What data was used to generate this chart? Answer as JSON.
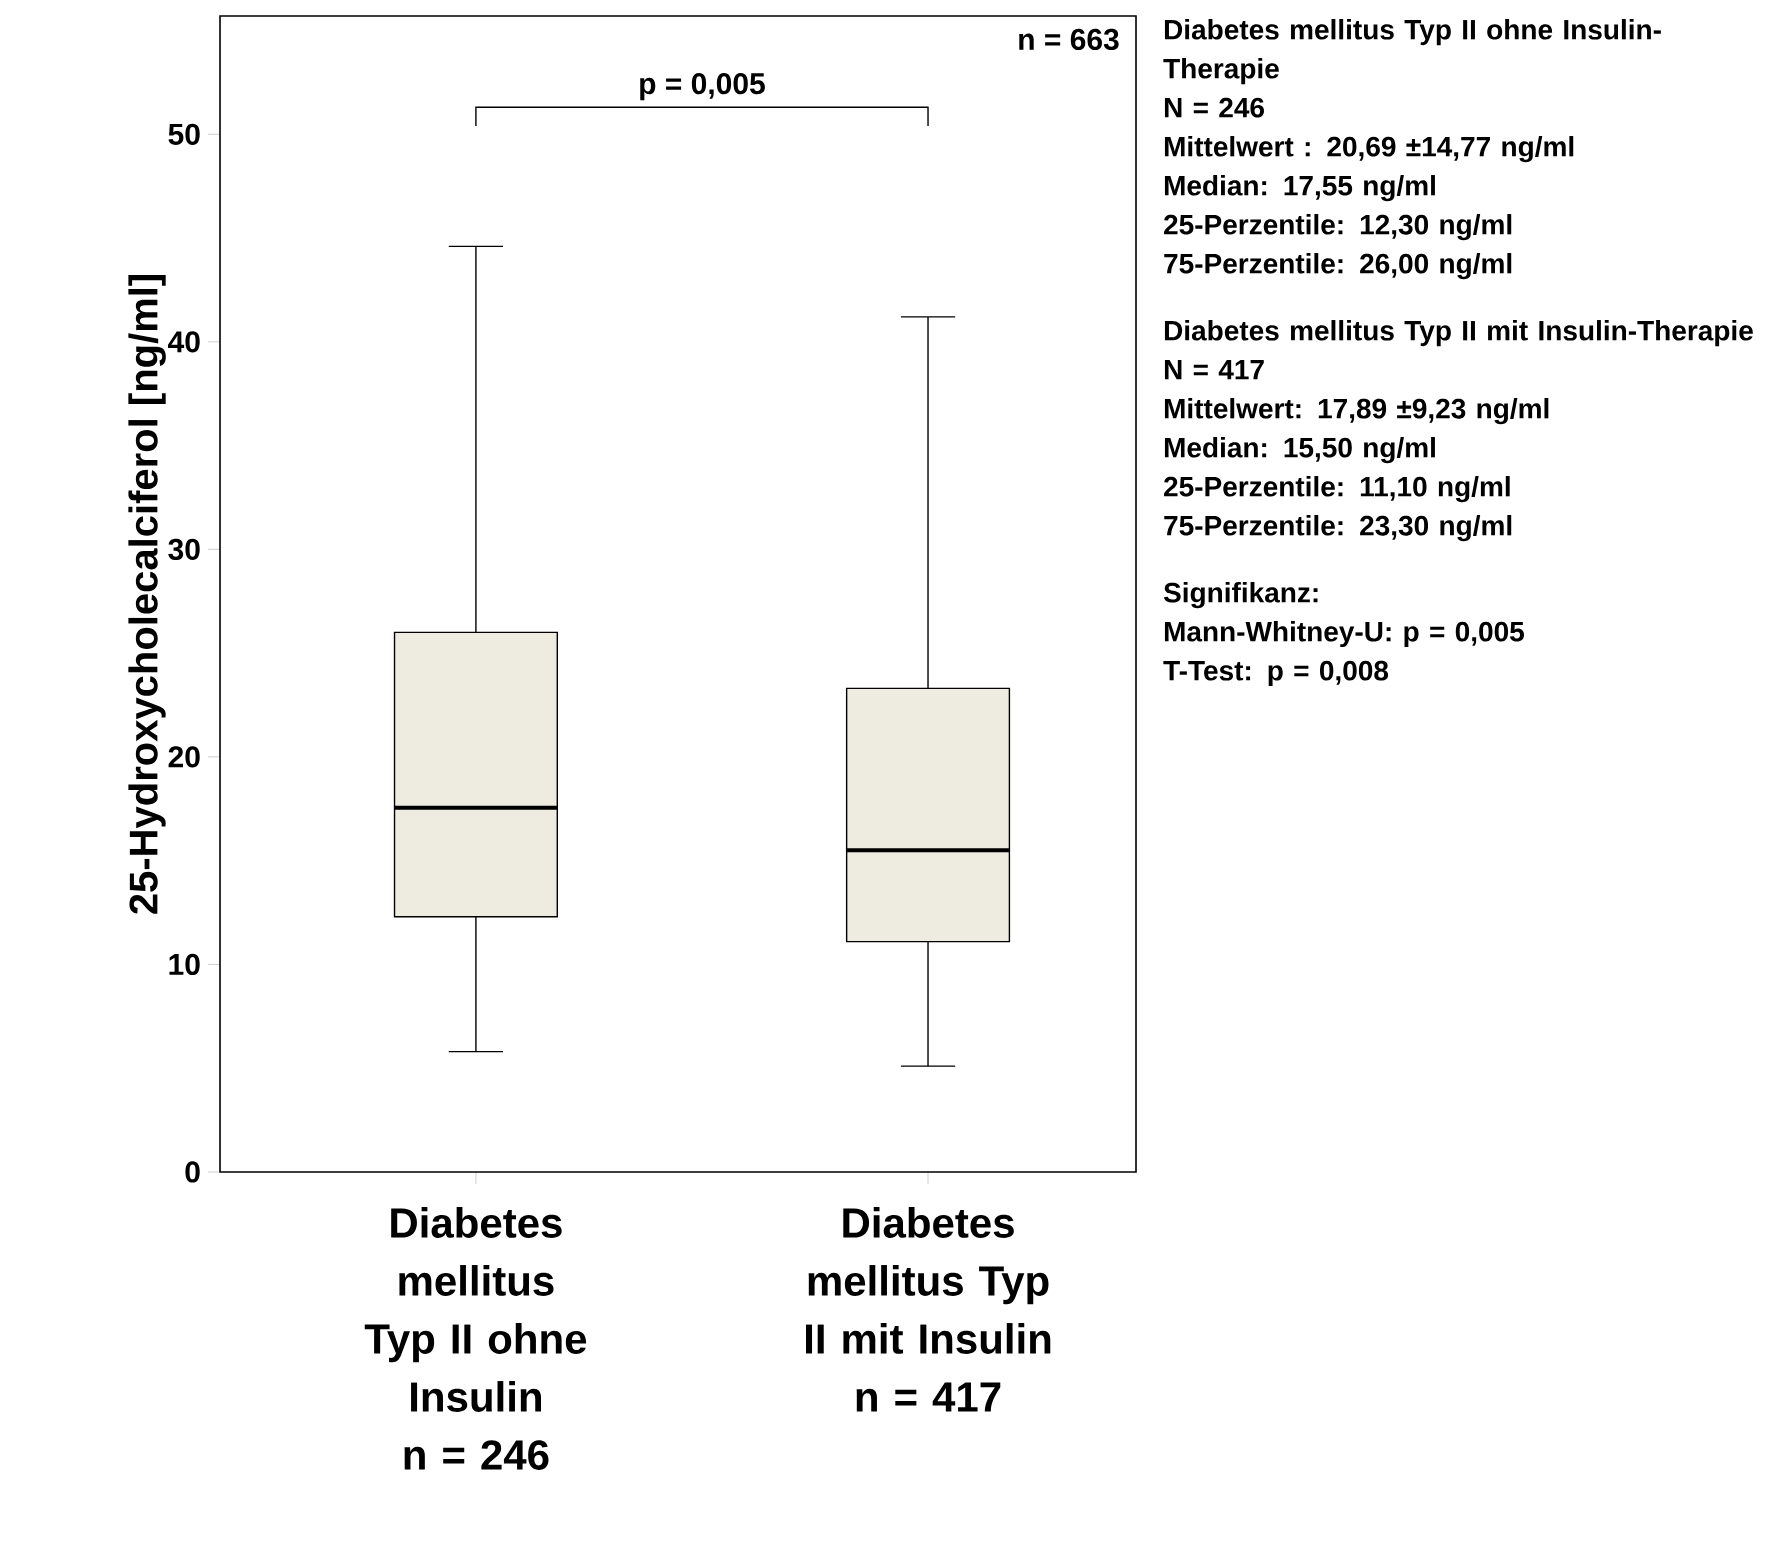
{
  "chart_data": {
    "type": "box",
    "ylabel": "25-Hydroxycholecalciferol [ng/ml]",
    "categories": [
      "Diabetes mellitus Typ II ohne Insulin n = 246",
      "Diabetes mellitus Typ II mit Insulin n = 417"
    ],
    "boxes": [
      {
        "low": 5.8,
        "q1": 12.3,
        "median": 17.55,
        "q3": 26.0,
        "high": 44.6
      },
      {
        "low": 5.1,
        "q1": 11.1,
        "median": 15.5,
        "q3": 23.3,
        "high": 41.2
      }
    ],
    "color": "#eeebe0",
    "ylim": [
      0,
      55.7
    ],
    "yticks": [
      0,
      10,
      20,
      30,
      40,
      50
    ],
    "grid": false,
    "annotations": [
      "p = 0,005",
      "n = 663",
      "Diabetes mellitus Typ II ohne Insulin-Therapie",
      "N = 246",
      "Mittelwert : 20,69  ±14,77 ng/ml",
      "Median: 17,55 ng/ml",
      "25-Perzentile: 12,30 ng/ml",
      "75-Perzentile: 26,00 ng/ml",
      "Diabetes mellitus Typ II mit Insulin-Therapie",
      "N = 417",
      "Mittelwert: 17,89 ±9,23 ng/ml",
      "Median: 15,50 ng/ml",
      "25-Perzentile: 11,10 ng/ml",
      "75-Perzentile: 23,30 ng/ml",
      "Signifikanz:",
      "Mann-Whitney-U: p = 0,005",
      "T-Test: p = 0,008"
    ]
  }
}
